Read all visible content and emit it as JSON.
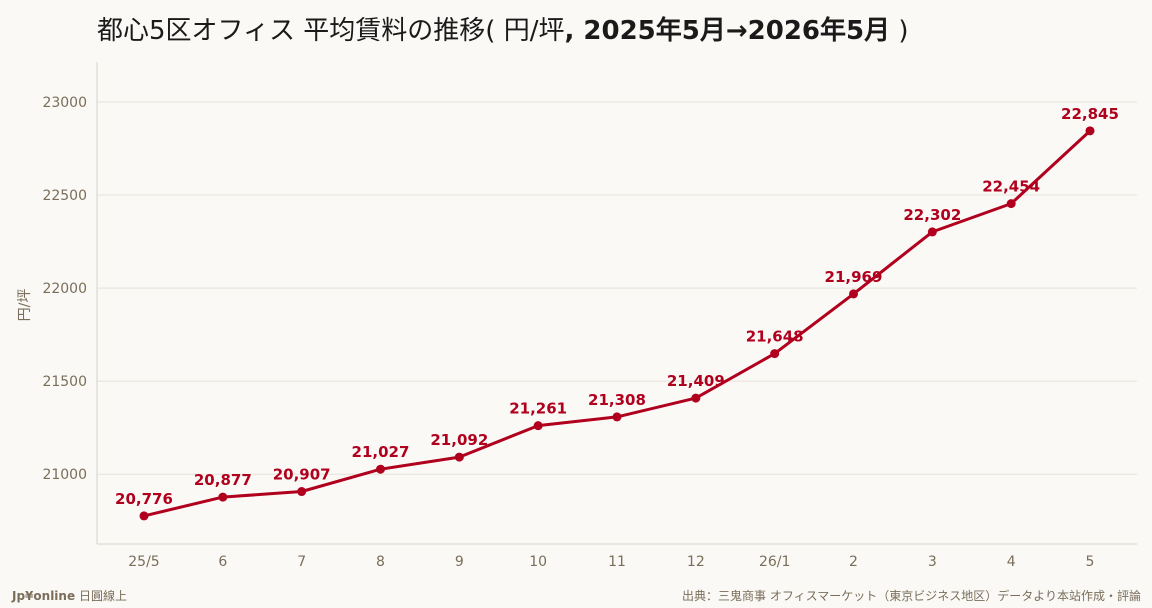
{
  "title": {
    "part1": "都心5区オフィス 平均賃料の推移",
    "part2": "( 円/坪",
    "part3": ", 2025年5月→2026年5月",
    "part4": " )"
  },
  "footer": {
    "brand": "Jp¥online",
    "brand_sub": "日圓線上",
    "source": "出典：三鬼商事 オフィスマーケット（東京ビジネス地区）データより本站作成・評論"
  },
  "chart_data": {
    "type": "line",
    "title": "都心5区オフィス 平均賃料の推移 ( 円/坪, 2025年5月→2026年5月 )",
    "xlabel": "",
    "ylabel": "円/坪",
    "categories": [
      "25/5",
      "6",
      "7",
      "8",
      "9",
      "10",
      "11",
      "12",
      "26/1",
      "2",
      "3",
      "4",
      "5"
    ],
    "series": [
      {
        "values": [
          20776,
          20877,
          20907,
          21027,
          21092,
          21261,
          21308,
          21409,
          21648,
          21969,
          22302,
          22454,
          22845
        ],
        "labels": [
          "20,776",
          "20,877",
          "20,907",
          "21,027",
          "21,092",
          "21,261",
          "21,308",
          "21,409",
          "21,648",
          "21,969",
          "22,302",
          "22,454",
          "22,845"
        ]
      }
    ],
    "yticks": [
      21000,
      21500,
      22000,
      22500,
      23000
    ],
    "ylim": [
      20625,
      23215
    ],
    "grid": "horizontal",
    "colors": {
      "line": "#b0001e",
      "axis_text": "#7a6e5a",
      "grid": "#e6e2da"
    }
  }
}
